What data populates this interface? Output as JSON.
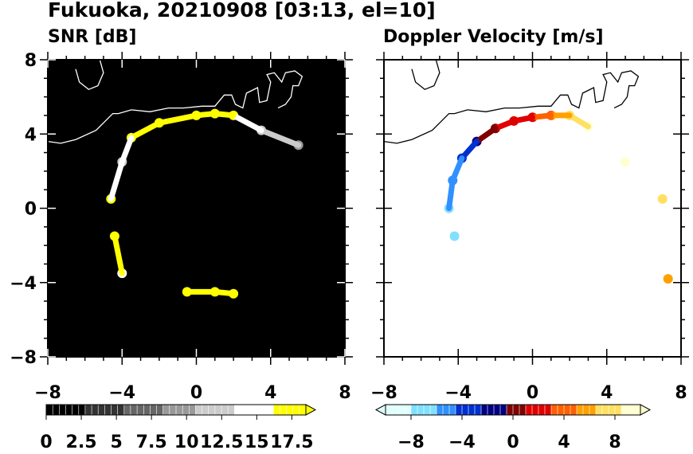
{
  "header": {
    "title": "Fukuoka, 20210908 [03:13, el=10]"
  },
  "panels": {
    "left": {
      "title": "SNR [dB]"
    },
    "right": {
      "title": "Doppler Velocity [m/s]"
    }
  },
  "chart_data": [
    {
      "type": "heatmap",
      "title": "SNR [dB]",
      "xlim": [
        -8,
        8
      ],
      "ylim": [
        -8,
        8
      ],
      "xticks": [
        "−8",
        "−4",
        "0",
        "4",
        "8"
      ],
      "yticks": [
        "8",
        "4",
        "0",
        "−4",
        "−8"
      ],
      "background": "#000000",
      "colorbar": {
        "ticks": [
          "0",
          "2.5",
          "5",
          "7.5",
          "10",
          "12.5",
          "15",
          "17.5"
        ],
        "min": 0,
        "max": 18.5,
        "extend": "max",
        "colors": [
          "#000000",
          "#333333",
          "#666666",
          "#999999",
          "#cccccc",
          "#ffffff",
          "#ffff00"
        ]
      },
      "echo_arc": [
        [
          -4,
          2.5,
          13
        ],
        [
          -3.5,
          3.8,
          18
        ],
        [
          -2,
          4.6,
          18
        ],
        [
          0,
          5,
          18
        ],
        [
          1,
          5.1,
          18
        ],
        [
          2,
          5,
          16
        ],
        [
          3.5,
          4.2,
          12
        ],
        [
          5.5,
          3.4,
          10
        ],
        [
          -4.6,
          0.5,
          18
        ],
        [
          -4.4,
          -1.5,
          18
        ],
        [
          -4,
          -3.5,
          14
        ],
        [
          -0.5,
          -4.5,
          16
        ],
        [
          1,
          -4.5,
          18
        ],
        [
          2,
          -4.6,
          18
        ]
      ]
    },
    {
      "type": "heatmap",
      "title": "Doppler Velocity [m/s]",
      "xlim": [
        -8,
        8
      ],
      "ylim": [
        -8,
        8
      ],
      "xticks": [
        "−8",
        "−4",
        "0",
        "4",
        "8"
      ],
      "yticks": [
        "8",
        "4",
        "0",
        "−4",
        "−8"
      ],
      "background": "#ffffff",
      "colorbar": {
        "ticks": [
          "−8",
          "−4",
          "0",
          "4",
          "8"
        ],
        "min": -10,
        "max": 10,
        "extend": "both",
        "colors": [
          "#e0ffff",
          "#80e0ff",
          "#3090ff",
          "#0030d0",
          "#000080",
          "#800000",
          "#e00000",
          "#ff6000",
          "#ffa000",
          "#ffe060",
          "#ffffd0"
        ]
      },
      "echo_arc": [
        [
          -4.5,
          0,
          -7
        ],
        [
          -4.2,
          -1.5,
          -7.5
        ],
        [
          -4.3,
          1.5,
          -5.5
        ],
        [
          -3.8,
          2.7,
          -4.5
        ],
        [
          -3,
          3.6,
          -2
        ],
        [
          -2,
          4.3,
          0.5
        ],
        [
          -1,
          4.7,
          1.5
        ],
        [
          0,
          4.9,
          2.5
        ],
        [
          1,
          5,
          4.5
        ],
        [
          2,
          5,
          7
        ],
        [
          3,
          4.4,
          9
        ],
        [
          5,
          2.5,
          9.5
        ],
        [
          7,
          0.5,
          8
        ],
        [
          7.3,
          -3.8,
          6
        ]
      ]
    }
  ]
}
